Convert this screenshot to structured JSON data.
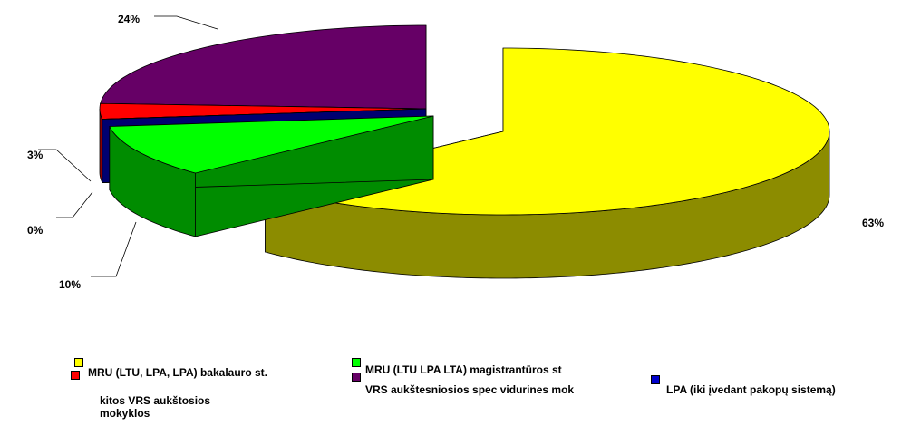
{
  "chart_data": {
    "type": "pie3d",
    "categories": [
      "MRU (LTU, LPA, LPA) bakalauro st.",
      "MRU (LTU LPA LTA) magistrantūros st",
      "LPA (iki įvedant pakopų sistemą)",
      "kitos VRS aukštosios mokyklos",
      "VRS aukštesniosios spec vidurines mok"
    ],
    "values": [
      63,
      10,
      0,
      3,
      24
    ],
    "value_labels": [
      "63%",
      "10%",
      "0%",
      "3%",
      "24%"
    ],
    "colors": [
      "#ffff00",
      "#00ff00",
      "#0000cc",
      "#ff0000",
      "#660066"
    ]
  }
}
